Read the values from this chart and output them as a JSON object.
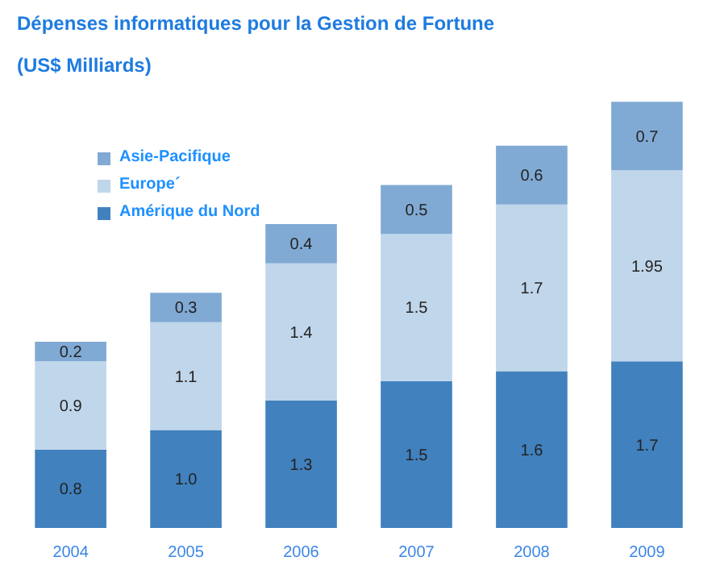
{
  "chart_data": {
    "type": "bar",
    "stacked": true,
    "title": "Dépenses informatiques pour la Gestion de Fortune",
    "subtitle": "(US$ Milliards)",
    "categories": [
      "2004",
      "2005",
      "2006",
      "2007",
      "2008",
      "2009"
    ],
    "series": [
      {
        "name": "Amérique du Nord",
        "color": "#4181be",
        "values": [
          0.8,
          1.0,
          1.3,
          1.5,
          1.6,
          1.7
        ],
        "value_labels": [
          "0.8",
          "1.0",
          "1.3",
          "1.5",
          "1.6",
          "1.7"
        ]
      },
      {
        "name": "Europe´",
        "color": "#c0d6ea",
        "values": [
          0.9,
          1.1,
          1.4,
          1.5,
          1.7,
          1.95
        ],
        "value_labels": [
          "0.9",
          "1.1",
          "1.4",
          "1.5",
          "1.7",
          "1.95"
        ]
      },
      {
        "name": "Asie-Pacifique",
        "color": "#80aad4",
        "values": [
          0.2,
          0.3,
          0.4,
          0.5,
          0.6,
          0.7
        ],
        "value_labels": [
          "0.2",
          "0.3",
          "0.4",
          "0.5",
          "0.6",
          "0.7"
        ]
      }
    ],
    "legend": "top left",
    "grid": false
  }
}
